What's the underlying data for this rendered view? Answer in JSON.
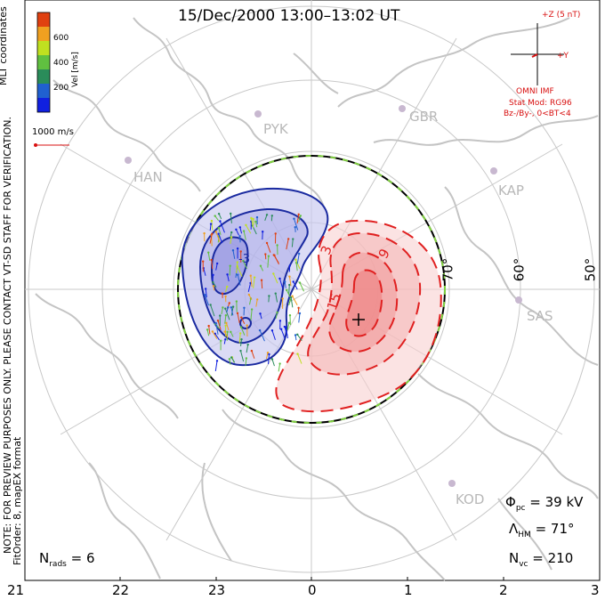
{
  "title": "15/Dec/2000 13:00–13:02 UT",
  "colorbar": {
    "ticks": [
      "600",
      "400",
      "200"
    ],
    "label": "Vel [m/s]",
    "colors": [
      "#1020e0",
      "#2060d0",
      "#2a8c5a",
      "#60c040",
      "#c0e020",
      "#f0a020",
      "#e04010"
    ]
  },
  "coords_label": "MLT coordinates",
  "warning_note": "NOTE: FOR PREVIEW PURPOSES ONLY. PLEASE CONTACT VT-SD STAFF FOR VERIFICATION.",
  "fit_label": "FitOrder: 8, mapEX format",
  "scale": {
    "label": "1000 m/s"
  },
  "imf": {
    "bz_label": "+Z (5 nT)",
    "by_label": "+Y",
    "source": "OMNI IMF",
    "stat_mod": "Stat Mod: RG96",
    "condition": "Bz-/By-, 0<BT<4"
  },
  "sites": [
    "PYK",
    "GBR",
    "HAN",
    "KAP",
    "SAS",
    "KOD"
  ],
  "latitudes": [
    "70°",
    "60°",
    "50°"
  ],
  "contours": {
    "labels": [
      "-3",
      "3",
      "9",
      "15"
    ]
  },
  "stats": {
    "phi_sym": "Φ",
    "phi_sub": "pc",
    "phi_val": "= 39 kV",
    "lam_sym": "Λ",
    "lam_sub": "HM",
    "lam_val": "= 71°",
    "nvc_sym": "N",
    "nvc_sub": "vc",
    "nvc_val": "= 210",
    "nrads_sym": "N",
    "nrads_sub": "rads",
    "nrads_val": "= 6"
  },
  "mlt_labels": [
    "21",
    "22",
    "23",
    "0",
    "1",
    "2",
    "3"
  ],
  "colors": {
    "positive": "#e02020",
    "negative": "#1a2aa0",
    "grid": "#c8c8c8",
    "land": "#c0c0c0",
    "boundary": "#80d040"
  }
}
